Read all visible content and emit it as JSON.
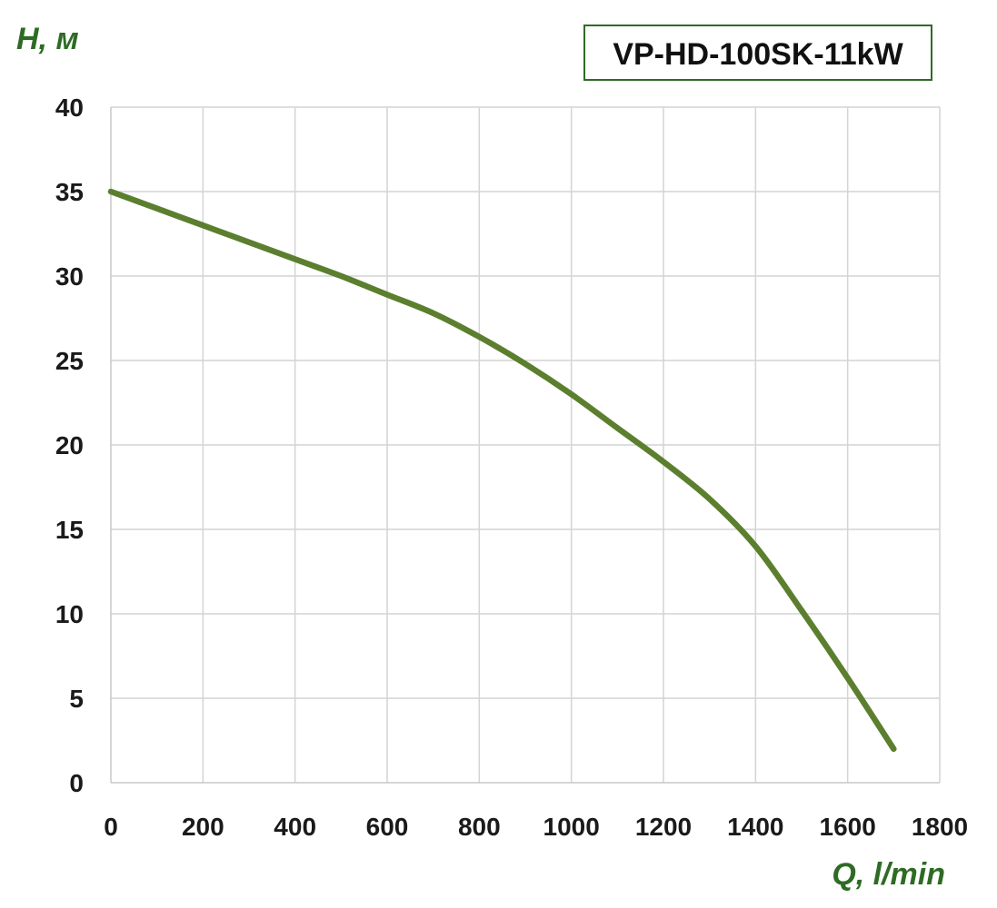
{
  "chart_data": {
    "type": "line",
    "title": "VP-HD-100SK-11kW",
    "xlabel": "Q, l/min",
    "ylabel": "H, м",
    "xlim": [
      0,
      1800
    ],
    "ylim": [
      0,
      40
    ],
    "x_ticks": [
      "0",
      "200",
      "400",
      "600",
      "800",
      "1000",
      "1200",
      "1400",
      "1600",
      "1800"
    ],
    "y_ticks": [
      "0",
      "5",
      "10",
      "15",
      "20",
      "25",
      "30",
      "35",
      "40"
    ],
    "grid": true,
    "series": [
      {
        "x": [
          0,
          100,
          200,
          300,
          400,
          500,
          600,
          700,
          800,
          900,
          1000,
          1100,
          1200,
          1300,
          1400,
          1500,
          1600,
          1700
        ],
        "y": [
          35,
          34,
          33,
          32,
          31,
          30,
          28.9,
          27.8,
          26.4,
          24.8,
          23,
          21,
          19,
          16.8,
          14,
          10.2,
          6.2,
          2
        ],
        "color": "#5b7f2e"
      }
    ],
    "colors": {
      "line": "#5b7f2e",
      "axis_label": "#2e6b24",
      "title_border": "#2e6b24",
      "grid": "#d4d4d4"
    }
  }
}
